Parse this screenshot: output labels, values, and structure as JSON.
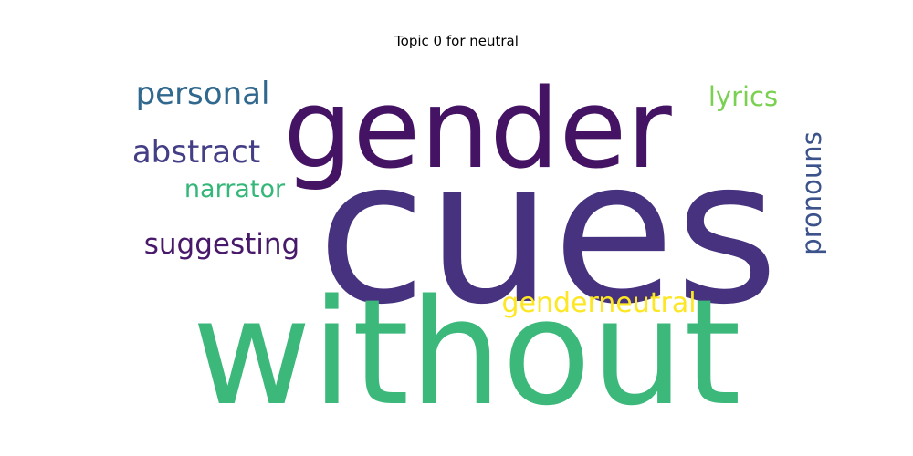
{
  "chart_data": {
    "type": "wordcloud",
    "title": "Topic 0 for neutral",
    "words": [
      {
        "text": "cues",
        "weight": 1.0,
        "color": "#46327e",
        "orientation": "horizontal"
      },
      {
        "text": "without",
        "weight": 0.86,
        "color": "#3bb87a",
        "orientation": "horizontal"
      },
      {
        "text": "gender",
        "weight": 0.68,
        "color": "#451363",
        "orientation": "horizontal"
      },
      {
        "text": "personal",
        "weight": 0.18,
        "color": "#31688e",
        "orientation": "horizontal"
      },
      {
        "text": "abstract",
        "weight": 0.18,
        "color": "#433e85",
        "orientation": "horizontal"
      },
      {
        "text": "suggesting",
        "weight": 0.17,
        "color": "#48186a",
        "orientation": "horizontal"
      },
      {
        "text": "lyrics",
        "weight": 0.15,
        "color": "#7ad151",
        "orientation": "horizontal"
      },
      {
        "text": "narrator",
        "weight": 0.14,
        "color": "#35b779",
        "orientation": "horizontal"
      },
      {
        "text": "pronouns",
        "weight": 0.17,
        "color": "#3b528b",
        "orientation": "vertical"
      },
      {
        "text": "genderneutral",
        "weight": 0.17,
        "color": "#fde725",
        "orientation": "horizontal"
      }
    ]
  }
}
